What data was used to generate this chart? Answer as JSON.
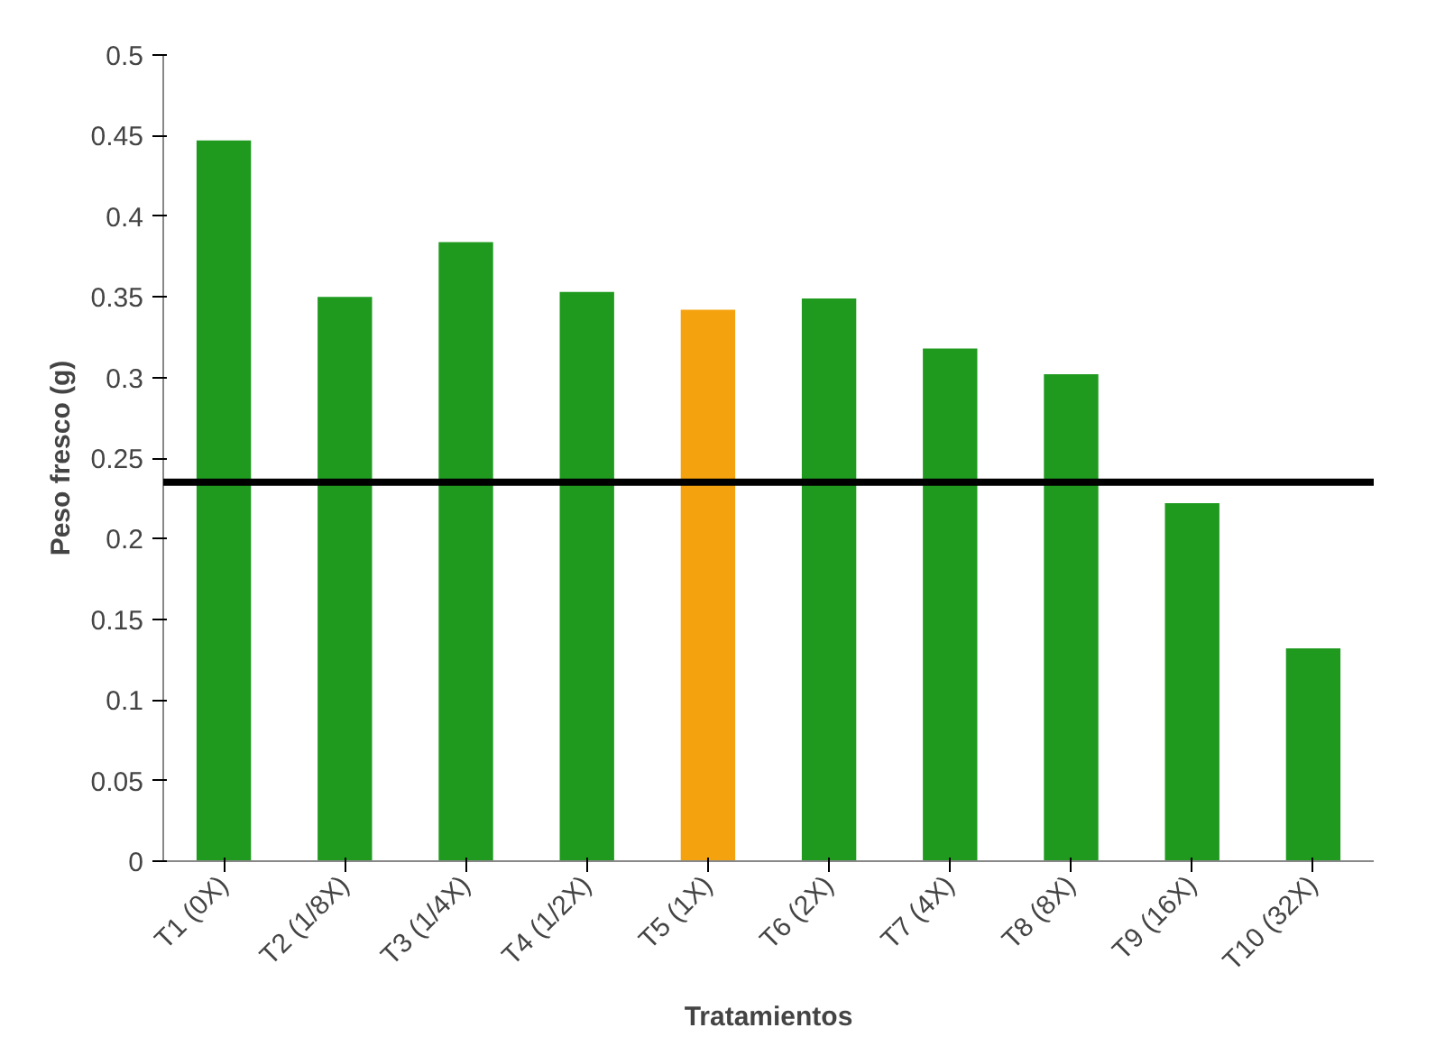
{
  "chart_data": {
    "type": "bar",
    "xlabel": "Tratamientos",
    "ylabel": "Peso fresco (g)",
    "categories": [
      "T1 (0X)",
      "T2 (1/8X)",
      "T3 (1/4X)",
      "T4 (1/2X)",
      "T5 (1X)",
      "T6 (2X)",
      "T7 (4X)",
      "T8 (8X)",
      "T9 (16X)",
      "T10 (32X)"
    ],
    "values": [
      0.447,
      0.35,
      0.384,
      0.353,
      0.342,
      0.349,
      0.318,
      0.302,
      0.222,
      0.132
    ],
    "colors": [
      "#1f9a1f",
      "#1f9a1f",
      "#1f9a1f",
      "#1f9a1f",
      "#f5a20f",
      "#1f9a1f",
      "#1f9a1f",
      "#1f9a1f",
      "#1f9a1f",
      "#1f9a1f"
    ],
    "ylim": [
      0,
      0.5
    ],
    "yticks": [
      0,
      0.05,
      0.1,
      0.15,
      0.2,
      0.25,
      0.3,
      0.35,
      0.4,
      0.45,
      0.5
    ],
    "ref_lines": [
      {
        "axis": "y",
        "value": 0.235,
        "color": "#000000"
      }
    ],
    "grid": false
  }
}
